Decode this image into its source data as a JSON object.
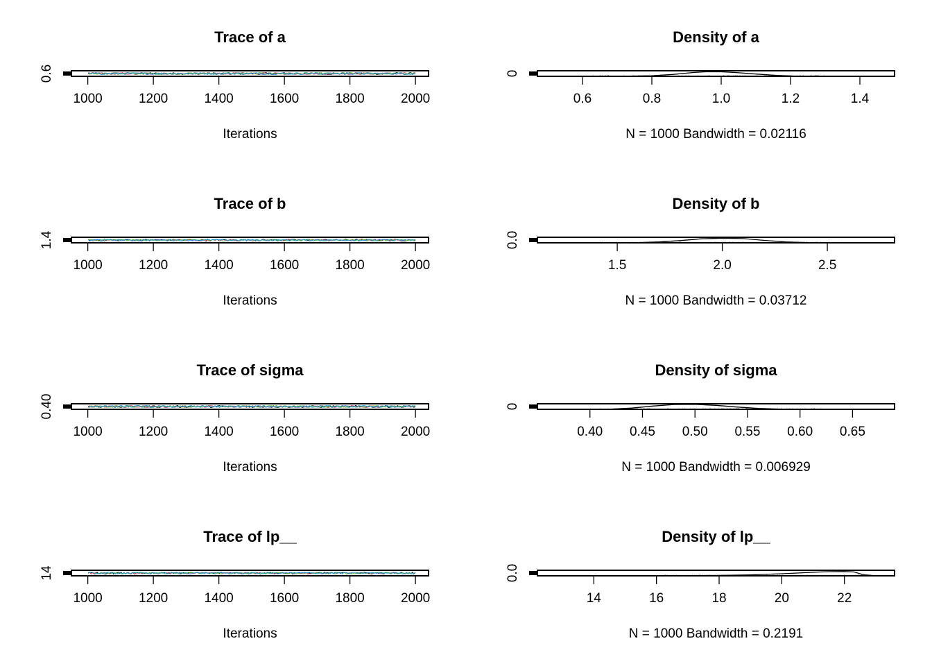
{
  "colors": {
    "background": "#ffffff",
    "axis": "#000000",
    "chains": [
      "#000000",
      "#df536b",
      "#61d04f",
      "#2297e6"
    ]
  },
  "chart_data": [
    {
      "type": "line",
      "title": "Trace of a",
      "xlabel": "Iterations",
      "ylabel": "",
      "xlim": [
        950,
        2040
      ],
      "xticks": [
        "1000",
        "1200",
        "1400",
        "1600",
        "1800",
        "2000"
      ],
      "xtick_values": [
        1000,
        1200,
        1400,
        1600,
        1800,
        2000
      ],
      "yticks": [
        "0.6"
      ],
      "ylim": [
        0.55,
        1.45
      ],
      "series": [
        {
          "x_range": [
            1001,
            2000
          ],
          "values_mean": 0.98
        },
        {
          "x_range": [
            1001,
            2000
          ],
          "values_mean": 0.99
        },
        {
          "x_range": [
            1001,
            2000
          ],
          "values_mean": 0.98
        },
        {
          "x_range": [
            1001,
            2000
          ],
          "values_mean": 0.99
        }
      ]
    },
    {
      "type": "area",
      "title": "Density of a",
      "xlabel": "N = 1000   Bandwidth = 0.02116",
      "ylabel": "",
      "xlim": [
        0.47,
        1.5
      ],
      "xticks": [
        "0.6",
        "0.8",
        "1.0",
        "1.2",
        "1.4"
      ],
      "xtick_values": [
        0.6,
        0.8,
        1.0,
        1.2,
        1.4
      ],
      "yticks": [
        "0"
      ],
      "ylim": [
        0,
        4.4
      ],
      "density": {
        "x": [
          0.62,
          0.72,
          0.8,
          0.86,
          0.92,
          0.96,
          1.0,
          1.04,
          1.1,
          1.16,
          1.22,
          1.3
        ],
        "y": [
          0.02,
          0.1,
          0.5,
          1.5,
          3.0,
          3.7,
          3.6,
          3.0,
          1.8,
          0.7,
          0.15,
          0.02
        ]
      }
    },
    {
      "type": "line",
      "title": "Trace of b",
      "xlabel": "Iterations",
      "ylabel": "",
      "xlim": [
        950,
        2040
      ],
      "xticks": [
        "1000",
        "1200",
        "1400",
        "1600",
        "1800",
        "2000"
      ],
      "xtick_values": [
        1000,
        1200,
        1400,
        1600,
        1800,
        2000
      ],
      "yticks": [
        "1.4"
      ],
      "ylim": [
        1.35,
        2.65
      ],
      "series": [
        {
          "x_range": [
            1001,
            2000
          ],
          "values_mean": 2.0
        },
        {
          "x_range": [
            1001,
            2000
          ],
          "values_mean": 2.0
        },
        {
          "x_range": [
            1001,
            2000
          ],
          "values_mean": 2.01
        },
        {
          "x_range": [
            1001,
            2000
          ],
          "values_mean": 2.0
        }
      ]
    },
    {
      "type": "area",
      "title": "Density of b",
      "xlabel": "N = 1000   Bandwidth = 0.03712",
      "ylabel": "",
      "xlim": [
        1.12,
        2.82
      ],
      "xticks": [
        "1.5",
        "2.0",
        "2.5"
      ],
      "xtick_values": [
        1.5,
        2.0,
        2.5
      ],
      "yticks": [
        "0.0"
      ],
      "ylim": [
        0,
        2.5
      ],
      "density": {
        "x": [
          1.4,
          1.6,
          1.7,
          1.8,
          1.9,
          2.0,
          2.1,
          2.2,
          2.3,
          2.4,
          2.6
        ],
        "y": [
          0.01,
          0.1,
          0.4,
          1.0,
          1.8,
          2.1,
          1.9,
          1.1,
          0.4,
          0.08,
          0.01
        ]
      }
    },
    {
      "type": "line",
      "title": "Trace of sigma",
      "xlabel": "Iterations",
      "ylabel": "",
      "xlim": [
        950,
        2040
      ],
      "xticks": [
        "1000",
        "1200",
        "1400",
        "1600",
        "1800",
        "2000"
      ],
      "xtick_values": [
        1000,
        1200,
        1400,
        1600,
        1800,
        2000
      ],
      "yticks": [
        "0.40"
      ],
      "ylim": [
        0.38,
        0.66
      ],
      "series": [
        {
          "x_range": [
            1001,
            2000
          ],
          "values_mean": 0.5
        },
        {
          "x_range": [
            1001,
            2000
          ],
          "values_mean": 0.5
        },
        {
          "x_range": [
            1001,
            2000
          ],
          "values_mean": 0.5
        },
        {
          "x_range": [
            1001,
            2000
          ],
          "values_mean": 0.5
        }
      ]
    },
    {
      "type": "area",
      "title": "Density of sigma",
      "xlabel": "N = 1000   Bandwidth = 0.006929",
      "ylabel": "",
      "xlim": [
        0.35,
        0.69
      ],
      "xticks": [
        "0.40",
        "0.45",
        "0.50",
        "0.55",
        "0.60",
        "0.65"
      ],
      "xtick_values": [
        0.4,
        0.45,
        0.5,
        0.55,
        0.6,
        0.65
      ],
      "yticks": [
        "0"
      ],
      "ylim": [
        0,
        11
      ],
      "density": {
        "x": [
          0.4,
          0.42,
          0.44,
          0.46,
          0.48,
          0.5,
          0.52,
          0.54,
          0.56,
          0.58,
          0.62
        ],
        "y": [
          0.05,
          0.5,
          2.5,
          6.5,
          9.5,
          9.8,
          7.8,
          4.5,
          1.8,
          0.5,
          0.05
        ]
      }
    },
    {
      "type": "line",
      "title": "Trace of lp__",
      "xlabel": "Iterations",
      "ylabel": "",
      "xlim": [
        950,
        2040
      ],
      "xticks": [
        "1000",
        "1200",
        "1400",
        "1600",
        "1800",
        "2000"
      ],
      "xtick_values": [
        1000,
        1200,
        1400,
        1600,
        1800,
        2000
      ],
      "yticks": [
        "14"
      ],
      "ylim": [
        13.5,
        23.2
      ],
      "series": [
        {
          "x_range": [
            1001,
            2000
          ],
          "values_mean": 21.3
        },
        {
          "x_range": [
            1001,
            2000
          ],
          "values_mean": 21.3
        },
        {
          "x_range": [
            1001,
            2000
          ],
          "values_mean": 21.3
        },
        {
          "x_range": [
            1001,
            2000
          ],
          "values_mean": 21.3
        }
      ]
    },
    {
      "type": "area",
      "title": "Density of lp__",
      "xlabel": "N = 1000   Bandwidth = 0.2191",
      "ylabel": "",
      "xlim": [
        12.2,
        23.6
      ],
      "xticks": [
        "14",
        "16",
        "18",
        "20",
        "22"
      ],
      "xtick_values": [
        14,
        16,
        18,
        20,
        22
      ],
      "yticks": [
        "0.0"
      ],
      "ylim": [
        0,
        0.4
      ],
      "density": {
        "x": [
          16,
          17,
          18,
          19,
          20,
          20.5,
          21,
          21.5,
          22,
          22.3,
          22.6,
          23
        ],
        "y": [
          0.003,
          0.01,
          0.03,
          0.07,
          0.15,
          0.2,
          0.26,
          0.3,
          0.31,
          0.28,
          0.08,
          0.005
        ]
      }
    }
  ]
}
